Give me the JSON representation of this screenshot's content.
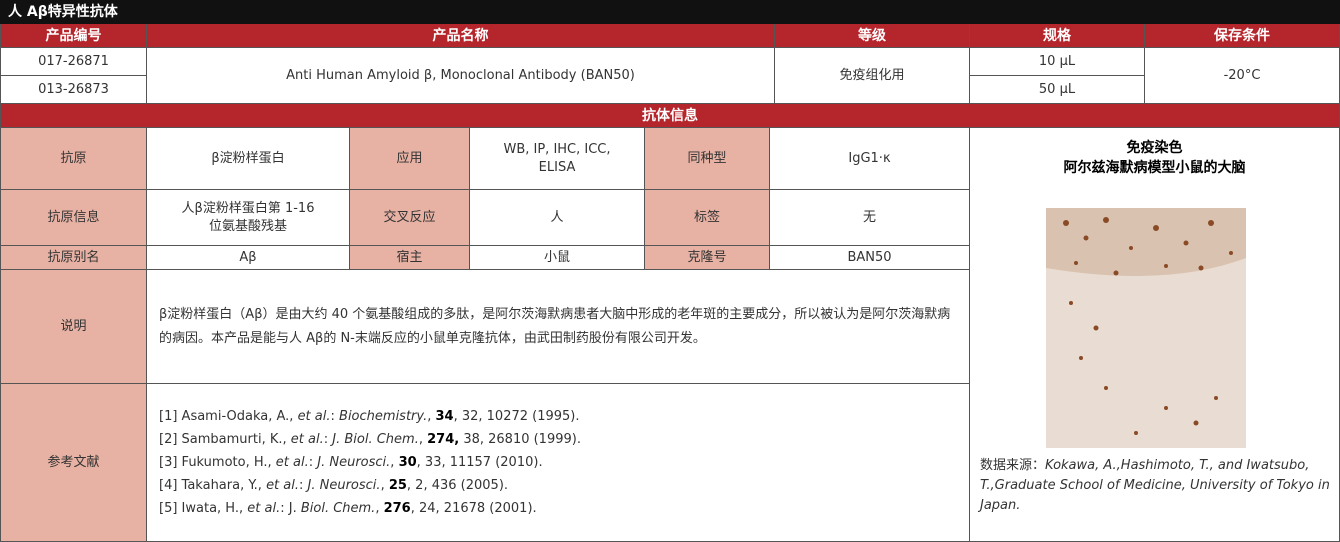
{
  "title": "人 Aβ特异性抗体",
  "products": {
    "headers": [
      "产品编号",
      "产品名称",
      "等级",
      "规格",
      "保存条件"
    ],
    "codes": [
      "017-26871",
      "013-26873"
    ],
    "name": "Anti Human Amyloid β, Monoclonal Antibody (BAN50)",
    "grade": "免疫组化用",
    "sizes": [
      "10 μL",
      "50 μL"
    ],
    "storage": "-20°C"
  },
  "antibody_info": {
    "title": "抗体信息",
    "antigen": {
      "label": "抗原",
      "value": "β淀粉样蛋白"
    },
    "application": {
      "label": "应用",
      "value": "WB, IP, IHC, ICC, ELISA"
    },
    "isotype": {
      "label": "同种型",
      "value": "IgG1·κ"
    },
    "antigen_info": {
      "label": "抗原信息",
      "value": "人β淀粉样蛋白第 1-16 位氨基酸残基"
    },
    "cross_reactivity": {
      "label": "交叉反应",
      "value": "人"
    },
    "tag": {
      "label": "标签",
      "value": "无"
    },
    "alias": {
      "label": "抗原别名",
      "value": "Aβ"
    },
    "host": {
      "label": "宿主",
      "value": "小鼠"
    },
    "clone": {
      "label": "克隆号",
      "value": "BAN50"
    },
    "description": {
      "label": "说明",
      "value": "β淀粉样蛋白（Aβ）是由大约 40 个氨基酸组成的多肽，是阿尔茨海默病患者大脑中形成的老年斑的主要成分，所以被认为是阿尔茨海默病的病因。本产品是能与人 Aβ的 N-末端反应的小鼠单克隆抗体，由武田制药股份有限公司开发。"
    },
    "references": {
      "label": "参考文献",
      "items": [
        [
          {
            "text": "[1] Asami-Odaka, A., "
          },
          {
            "text": "et al.",
            "style": "italic"
          },
          {
            "text": ": "
          },
          {
            "text": "Biochemistry.",
            "style": "italic"
          },
          {
            "text": ", "
          },
          {
            "text": "34",
            "style": "bold"
          },
          {
            "text": ", 32, 10272 (1995)."
          }
        ],
        [
          {
            "text": "[2] Sambamurti, K., "
          },
          {
            "text": "et al.",
            "style": "italic"
          },
          {
            "text": ": "
          },
          {
            "text": "J. Biol. Chem.",
            "style": "italic"
          },
          {
            "text": ", "
          },
          {
            "text": "274,",
            "style": "bold"
          },
          {
            "text": " 38, 26810 (1999)."
          }
        ],
        [
          {
            "text": "[3] Fukumoto, H., "
          },
          {
            "text": "et al.",
            "style": "italic"
          },
          {
            "text": ": "
          },
          {
            "text": "J. Neurosci.",
            "style": "italic"
          },
          {
            "text": ", "
          },
          {
            "text": "30",
            "style": "bold"
          },
          {
            "text": ", 33, 11157 (2010)."
          }
        ],
        [
          {
            "text": "[4] Takahara, Y., "
          },
          {
            "text": "et al.",
            "style": "italic"
          },
          {
            "text": ": "
          },
          {
            "text": "J. Neurosci.",
            "style": "italic"
          },
          {
            "text": ", "
          },
          {
            "text": "25",
            "style": "bold"
          },
          {
            "text": ", 2, 436 (2005)."
          }
        ],
        [
          {
            "text": "[5] Iwata, H., "
          },
          {
            "text": "et al.",
            "style": "italic"
          },
          {
            "text": ": J. "
          },
          {
            "text": "Biol. Chem.",
            "style": "italic"
          },
          {
            "text": ", "
          },
          {
            "text": "276",
            "style": "bold"
          },
          {
            "text": ", 24, 21678 (2001)."
          }
        ]
      ]
    },
    "figure": {
      "title": [
        "免疫染色",
        "阿尔兹海默病模型小鼠的大脑"
      ],
      "caption": [
        {
          "text": "数据来源："
        },
        {
          "text": "Kokawa, A.,Hashimoto, T., and Iwatsubo, T.,Graduate School of Medicine, University of Tokyo in Japan.",
          "style": "italic"
        }
      ]
    }
  }
}
